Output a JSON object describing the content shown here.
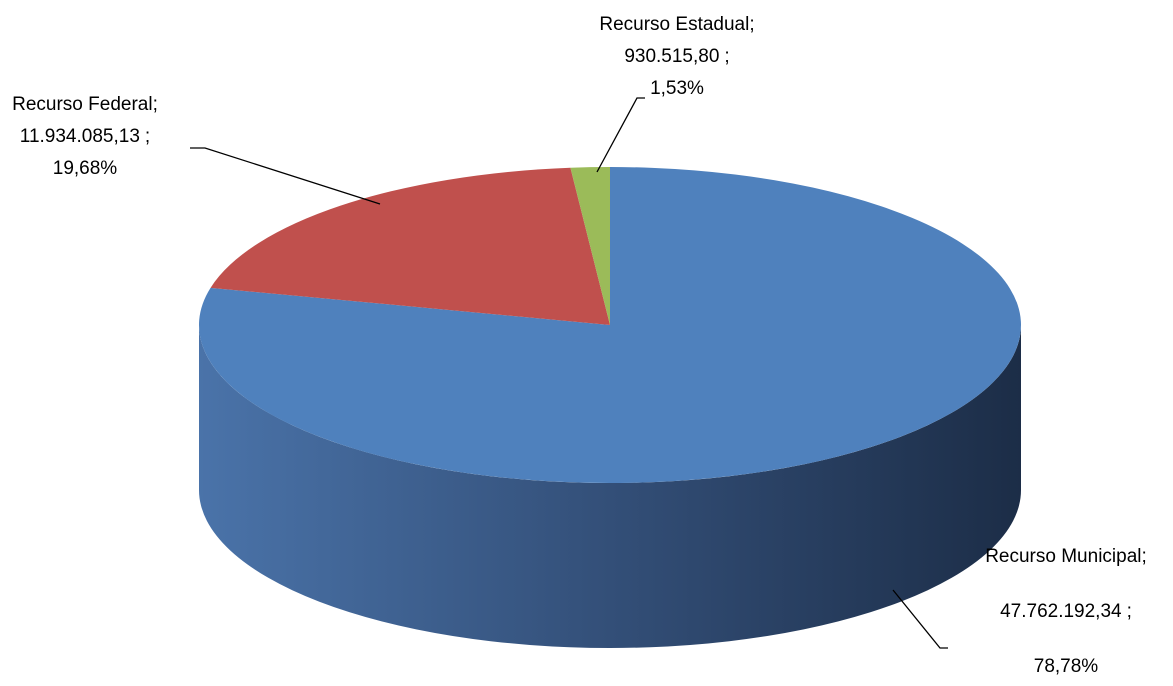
{
  "chart_data": {
    "type": "pie3d",
    "categories": [
      "Recurso Municipal",
      "Recurso Federal",
      "Recurso Estadual"
    ],
    "values": [
      47762192.34,
      11934085.13,
      930515.8
    ],
    "value_labels": [
      "47.762.192,34",
      "11.934.085,13",
      "930.515,80"
    ],
    "percent_labels": [
      "78,78%",
      "19,68%",
      "1,53%"
    ],
    "separator": ";",
    "colors": [
      "#4f81bd",
      "#c0504d",
      "#9bbb59"
    ]
  }
}
